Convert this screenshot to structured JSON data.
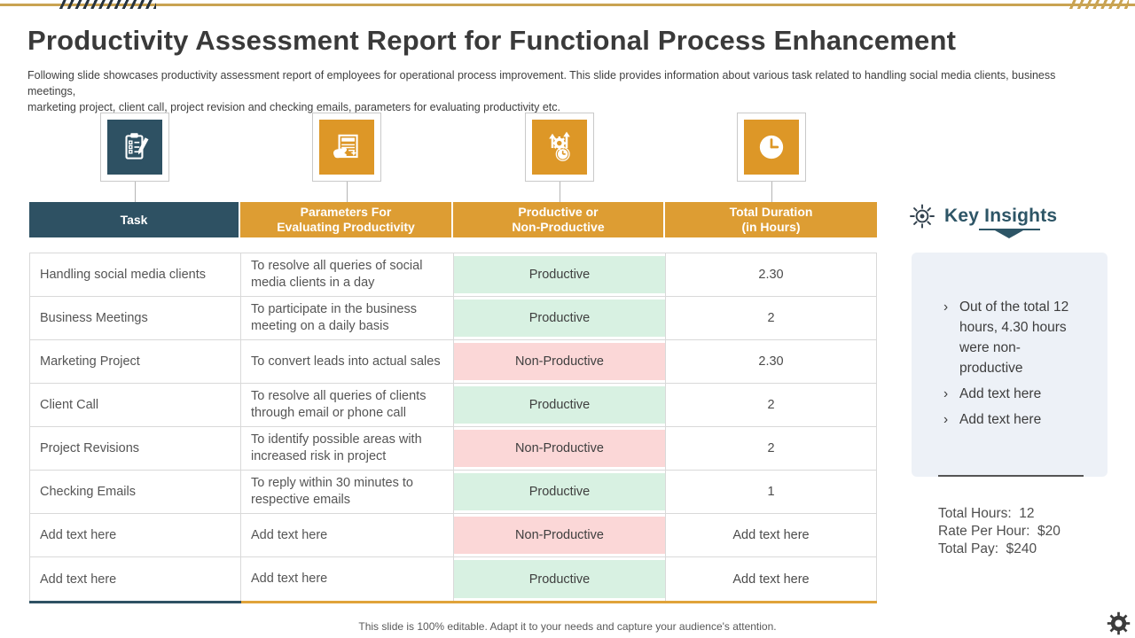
{
  "header": {
    "title": "Productivity Assessment Report for Functional Process Enhancement",
    "subtitle": "Following slide showcases productivity assessment report of employees for operational process improvement. This slide provides information about various task related to handling social media clients, business meetings,\nmarketing project, client call, project revision and checking emails, parameters for evaluating productivity etc."
  },
  "icons": [
    {
      "name": "assessment-checklist-icon",
      "bg": "teal"
    },
    {
      "name": "evaluation-hand-document-icon",
      "bg": "orange"
    },
    {
      "name": "productivity-gear-arrows-clock-icon",
      "bg": "orange"
    },
    {
      "name": "duration-clock-icon",
      "bg": "orange"
    }
  ],
  "table": {
    "headers": [
      {
        "label": "Task",
        "bg": "teal"
      },
      {
        "label": "Parameters For\nEvaluating Productivity",
        "bg": "orange"
      },
      {
        "label": "Productive or\nNon-Productive",
        "bg": "orange"
      },
      {
        "label": "Total Duration\n(in Hours)",
        "bg": "orange"
      }
    ],
    "rows": [
      {
        "task": "Handling social media clients",
        "parameter": "To resolve all queries of social media clients in a day",
        "status": "Productive",
        "duration": "2.30"
      },
      {
        "task": "Business Meetings",
        "parameter": "To participate in the business meeting on a daily basis",
        "status": "Productive",
        "duration": "2"
      },
      {
        "task": "Marketing Project",
        "parameter": "To convert leads into actual sales",
        "status": "Non-Productive",
        "duration": "2.30"
      },
      {
        "task": "Client Call",
        "parameter": "To resolve all queries of clients through email or phone call",
        "status": "Productive",
        "duration": "2"
      },
      {
        "task": "Project Revisions",
        "parameter": "To identify possible areas with increased risk in project",
        "status": "Non-Productive",
        "duration": "2"
      },
      {
        "task": "Checking Emails",
        "parameter": "To reply within 30 minutes to respective emails",
        "status": "Productive",
        "duration": "1"
      },
      {
        "task": "Add text here",
        "parameter": "Add text here",
        "status": "Non-Productive",
        "duration": "Add text here"
      },
      {
        "task": "Add text here",
        "parameter": "Add text here",
        "status": "Productive",
        "duration": "Add text here"
      }
    ]
  },
  "key_insights": {
    "title": "Key Insights",
    "icon": "insight-eye-icon",
    "bullets": [
      "Out of the total 12 hours, 4.30 hours were non-productive",
      "Add text here",
      "Add text here"
    ],
    "totals": [
      "Total Hours:  12",
      "Rate Per Hour:  $20",
      "Total Pay:  $240"
    ]
  },
  "footer": {
    "note": "This slide is 100% editable. Adapt it to your needs and capture your audience's attention.",
    "gear_icon": "settings-gear-icon"
  },
  "colors": {
    "teal": "#2e5163",
    "orange": "#dd9d33",
    "icon_orange": "#dd9727",
    "productive_bg": "#d8f1e2",
    "nonproductive_bg": "#fbd7d7",
    "gold_bar": "#c9a352",
    "panel_bg": "#edf1f7",
    "insight_title": "#2d5566"
  }
}
